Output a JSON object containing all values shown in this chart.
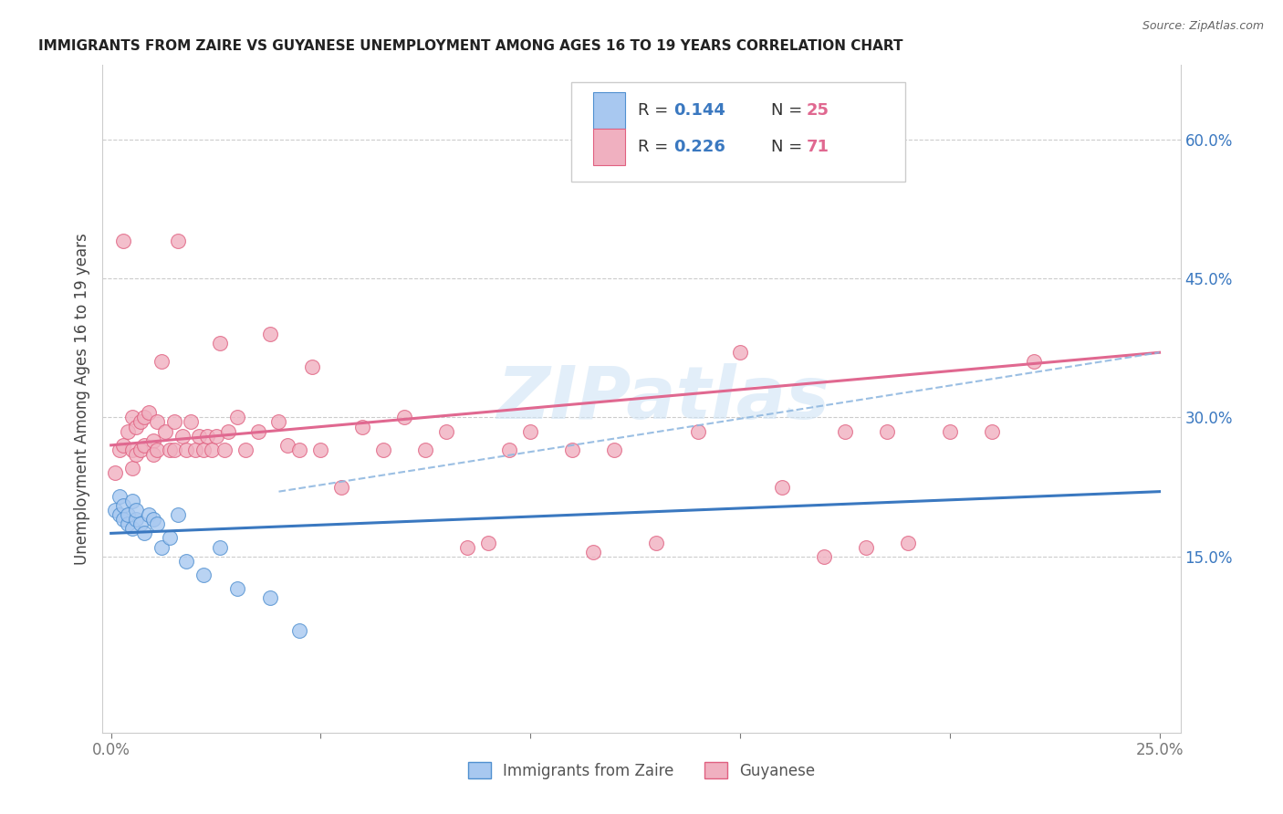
{
  "title": "IMMIGRANTS FROM ZAIRE VS GUYANESE UNEMPLOYMENT AMONG AGES 16 TO 19 YEARS CORRELATION CHART",
  "source": "Source: ZipAtlas.com",
  "ylabel": "Unemployment Among Ages 16 to 19 years",
  "xlim": [
    -0.002,
    0.255
  ],
  "ylim": [
    -0.04,
    0.68
  ],
  "right_yticks": [
    0.15,
    0.3,
    0.45,
    0.6
  ],
  "right_yticklabels": [
    "15.0%",
    "30.0%",
    "45.0%",
    "60.0%"
  ],
  "xtick_positions": [
    0.0,
    0.05,
    0.1,
    0.15,
    0.2,
    0.25
  ],
  "xtick_labels": [
    "0.0%",
    "",
    "",
    "",
    "",
    "25.0%"
  ],
  "legend_label1": "Immigrants from Zaire",
  "legend_label2": "Guyanese",
  "color_blue_fill": "#a8c8f0",
  "color_blue_edge": "#5090d0",
  "color_pink_fill": "#f0b0c0",
  "color_pink_edge": "#e06080",
  "color_blue_line": "#3a78c0",
  "color_pink_line": "#e06890",
  "color_dash_line": "#90b8e0",
  "color_r_text": "#3a78c0",
  "color_n_text": "#e06890",
  "watermark_color": "#d0e4f5",
  "grid_color": "#cccccc",
  "blue_x": [
    0.001,
    0.002,
    0.002,
    0.003,
    0.003,
    0.004,
    0.004,
    0.005,
    0.005,
    0.006,
    0.006,
    0.007,
    0.008,
    0.009,
    0.01,
    0.011,
    0.012,
    0.014,
    0.016,
    0.018,
    0.022,
    0.026,
    0.03,
    0.038,
    0.045
  ],
  "blue_y": [
    0.2,
    0.215,
    0.195,
    0.205,
    0.19,
    0.185,
    0.195,
    0.18,
    0.21,
    0.19,
    0.2,
    0.185,
    0.175,
    0.195,
    0.19,
    0.185,
    0.16,
    0.17,
    0.195,
    0.145,
    0.13,
    0.16,
    0.115,
    0.105,
    0.07
  ],
  "pink_x": [
    0.001,
    0.002,
    0.003,
    0.003,
    0.004,
    0.005,
    0.005,
    0.005,
    0.006,
    0.006,
    0.007,
    0.007,
    0.008,
    0.008,
    0.009,
    0.01,
    0.01,
    0.011,
    0.011,
    0.012,
    0.013,
    0.014,
    0.015,
    0.015,
    0.016,
    0.017,
    0.018,
    0.019,
    0.02,
    0.021,
    0.022,
    0.023,
    0.024,
    0.025,
    0.026,
    0.027,
    0.028,
    0.03,
    0.032,
    0.035,
    0.038,
    0.04,
    0.042,
    0.045,
    0.048,
    0.05,
    0.055,
    0.06,
    0.065,
    0.07,
    0.075,
    0.08,
    0.085,
    0.09,
    0.095,
    0.1,
    0.11,
    0.115,
    0.12,
    0.13,
    0.14,
    0.15,
    0.16,
    0.17,
    0.175,
    0.18,
    0.185,
    0.19,
    0.2,
    0.21,
    0.22
  ],
  "pink_y": [
    0.24,
    0.265,
    0.49,
    0.27,
    0.285,
    0.3,
    0.265,
    0.245,
    0.29,
    0.26,
    0.295,
    0.265,
    0.3,
    0.27,
    0.305,
    0.275,
    0.26,
    0.295,
    0.265,
    0.36,
    0.285,
    0.265,
    0.295,
    0.265,
    0.49,
    0.28,
    0.265,
    0.295,
    0.265,
    0.28,
    0.265,
    0.28,
    0.265,
    0.28,
    0.38,
    0.265,
    0.285,
    0.3,
    0.265,
    0.285,
    0.39,
    0.295,
    0.27,
    0.265,
    0.355,
    0.265,
    0.225,
    0.29,
    0.265,
    0.3,
    0.265,
    0.285,
    0.16,
    0.165,
    0.265,
    0.285,
    0.265,
    0.155,
    0.265,
    0.165,
    0.285,
    0.37,
    0.225,
    0.15,
    0.285,
    0.16,
    0.285,
    0.165,
    0.285,
    0.285,
    0.36
  ],
  "blue_line_x0": 0.0,
  "blue_line_x1": 0.25,
  "blue_line_y0": 0.175,
  "blue_line_y1": 0.22,
  "pink_line_x0": 0.0,
  "pink_line_x1": 0.25,
  "pink_line_y0": 0.27,
  "pink_line_y1": 0.37,
  "dash_line_x0": 0.04,
  "dash_line_x1": 0.25,
  "dash_line_y0": 0.22,
  "dash_line_y1": 0.37
}
